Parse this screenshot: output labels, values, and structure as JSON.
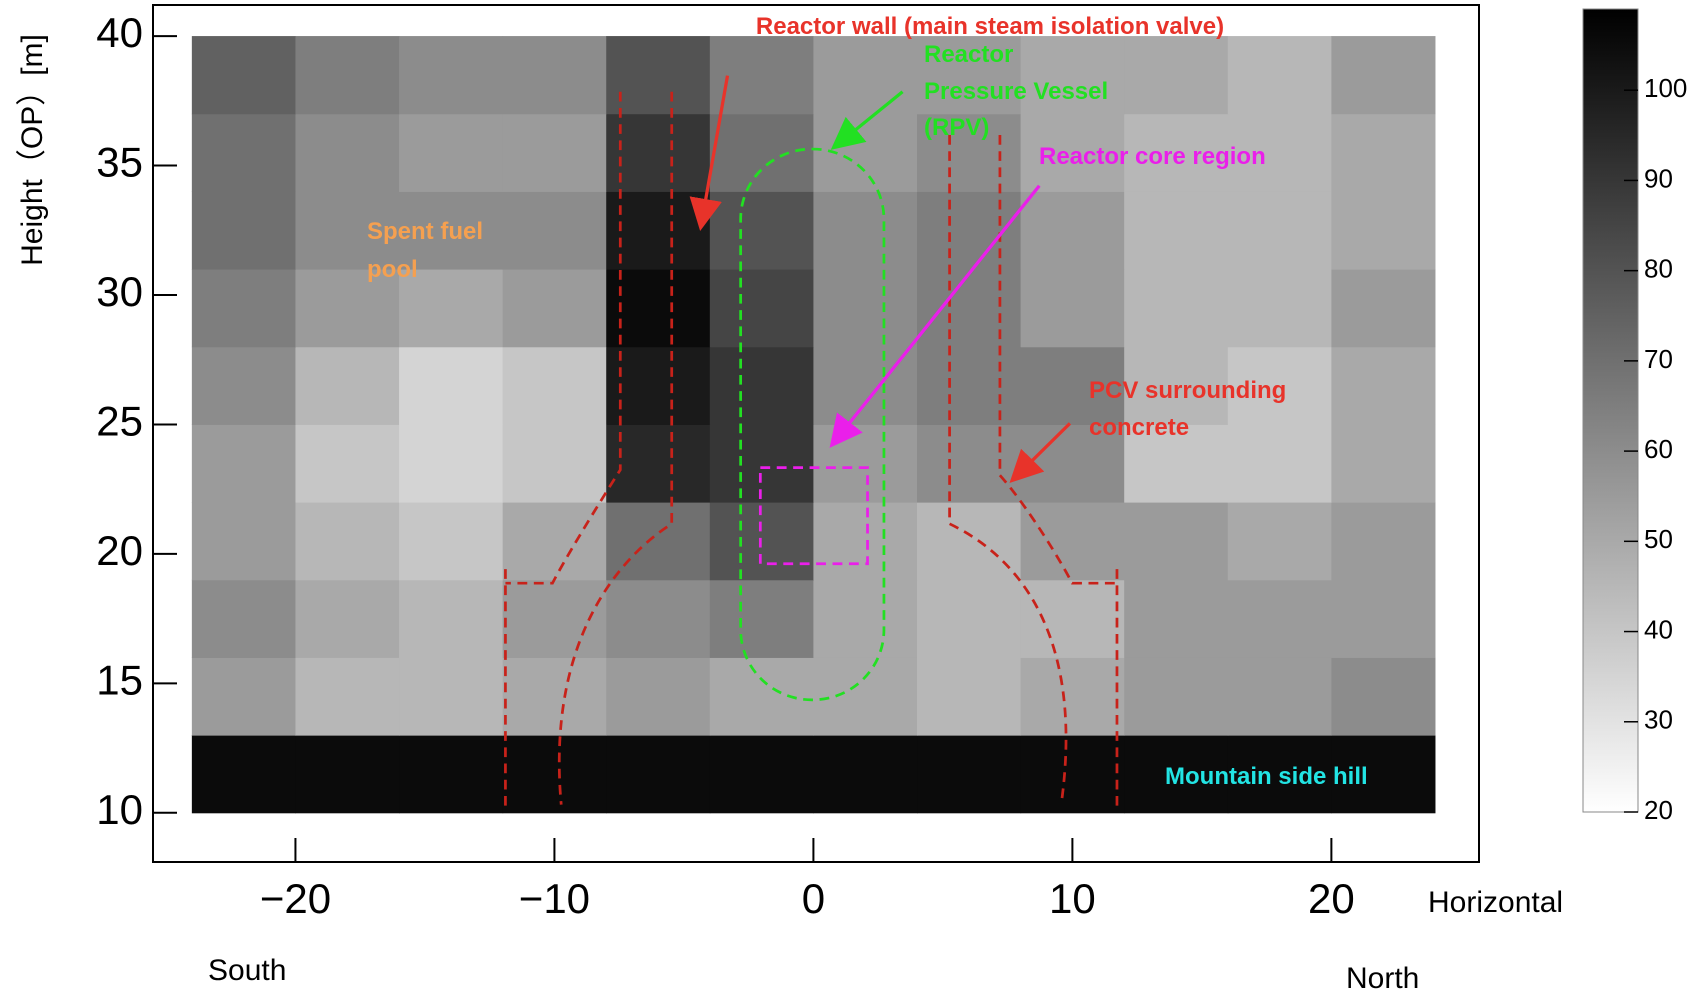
{
  "chart_data": {
    "type": "heatmap",
    "y_label": "Height（OP）[m]",
    "x_label": "Horizontal",
    "south_label": "South",
    "north_label": "North",
    "xbins": [
      -24,
      -20,
      -16,
      -12,
      -8,
      -4,
      0,
      4,
      8,
      12,
      16,
      20,
      24
    ],
    "ybins": [
      10,
      13,
      16,
      19,
      22,
      25,
      28,
      31,
      34,
      37,
      40
    ],
    "values": [
      [
        105,
        105,
        105,
        105,
        105,
        105,
        105,
        105,
        105,
        105,
        105,
        105
      ],
      [
        55,
        45,
        45,
        50,
        55,
        50,
        50,
        45,
        50,
        55,
        55,
        60
      ],
      [
        60,
        50,
        45,
        55,
        60,
        65,
        50,
        45,
        45,
        55,
        55,
        55
      ],
      [
        55,
        45,
        40,
        50,
        70,
        80,
        50,
        45,
        55,
        55,
        50,
        55
      ],
      [
        55,
        40,
        35,
        40,
        95,
        90,
        55,
        60,
        60,
        40,
        40,
        50
      ],
      [
        60,
        45,
        35,
        40,
        100,
        90,
        60,
        65,
        65,
        45,
        40,
        50
      ],
      [
        65,
        55,
        50,
        55,
        105,
        85,
        60,
        65,
        55,
        45,
        45,
        55
      ],
      [
        70,
        60,
        60,
        60,
        100,
        80,
        60,
        65,
        55,
        45,
        45,
        50
      ],
      [
        70,
        60,
        55,
        55,
        90,
        70,
        55,
        60,
        50,
        45,
        45,
        50
      ],
      [
        75,
        65,
        60,
        60,
        80,
        65,
        55,
        55,
        50,
        50,
        45,
        55
      ]
    ],
    "colormap": [
      "#ffffff",
      "#000000"
    ],
    "xlim": [
      -25.5,
      25.7
    ],
    "ylim": [
      8.1,
      41.2
    ],
    "xticks": [
      {
        "value": -20,
        "label": "−20"
      },
      {
        "value": -10,
        "label": "−10"
      },
      0,
      10,
      20
    ],
    "yticks": [
      10,
      15,
      20,
      25,
      30,
      35,
      40
    ],
    "zlim": [
      20,
      109
    ],
    "zticks": [
      20,
      30,
      40,
      50,
      60,
      70,
      80,
      90,
      100
    ],
    "annotations": [
      {
        "lines": [
          "Reactor wall (main steam isolation valve)"
        ],
        "color": "#e8332a"
      },
      {
        "lines": [
          "Reactor",
          "Pressure Vessel",
          "(RPV)"
        ],
        "color": "#22e022"
      },
      {
        "lines": [
          "Reactor core region"
        ],
        "color": "#ea1fea"
      },
      {
        "lines": [
          "Spent fuel",
          "pool"
        ],
        "color": "#f5a050"
      },
      {
        "lines": [
          "PCV surrounding",
          "concrete"
        ],
        "color": "#e8332a"
      },
      {
        "lines": [
          "Mountain side hill"
        ],
        "color": "#22e4e4"
      }
    ]
  }
}
